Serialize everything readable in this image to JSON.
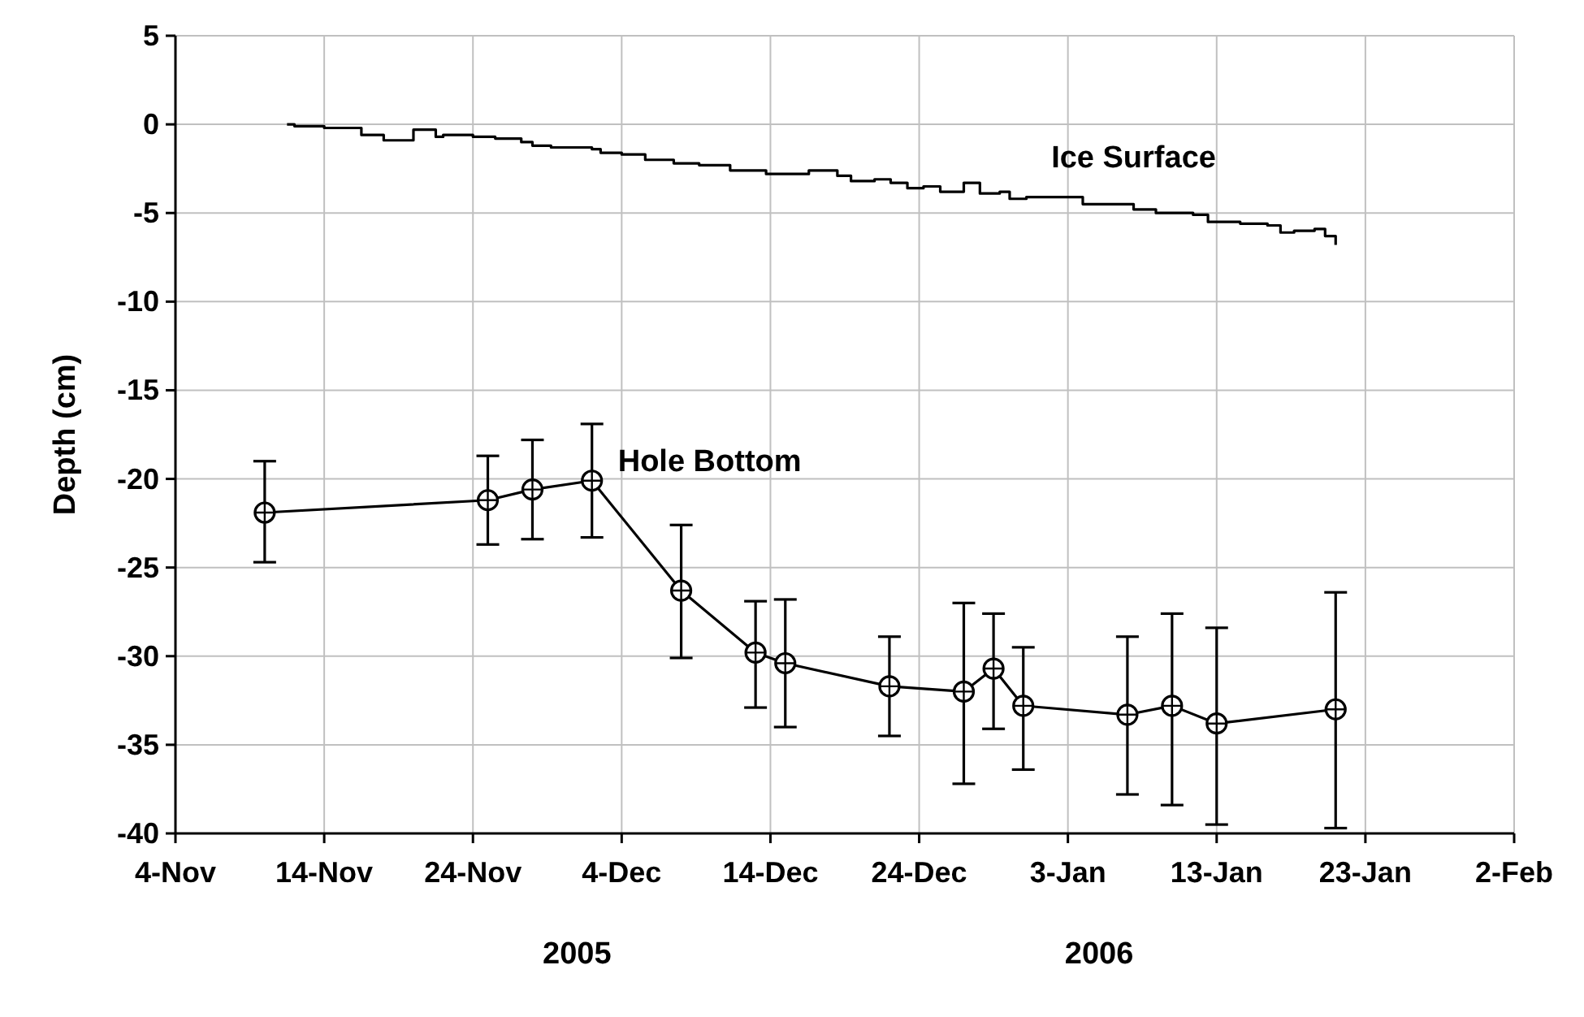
{
  "chart_data": {
    "type": "line",
    "ylabel": "Depth (cm)",
    "grid": true,
    "legend": false,
    "xlim": [
      "2005-11-04",
      "2006-02-02"
    ],
    "xticks": [
      {
        "value": "2005-11-04",
        "label": "4-Nov"
      },
      {
        "value": "2005-11-14",
        "label": "14-Nov"
      },
      {
        "value": "2005-11-24",
        "label": "24-Nov"
      },
      {
        "value": "2005-12-04",
        "label": "4-Dec"
      },
      {
        "value": "2005-12-14",
        "label": "14-Dec"
      },
      {
        "value": "2005-12-24",
        "label": "24-Dec"
      },
      {
        "value": "2006-01-03",
        "label": "3-Jan"
      },
      {
        "value": "2006-01-13",
        "label": "13-Jan"
      },
      {
        "value": "2006-01-23",
        "label": "23-Jan"
      },
      {
        "value": "2006-02-02",
        "label": "2-Feb"
      }
    ],
    "ylim": [
      -40,
      5
    ],
    "yticks": [
      -40,
      -35,
      -30,
      -25,
      -20,
      -15,
      -10,
      -5,
      0,
      5
    ],
    "annotations": [
      "2005",
      "2006"
    ],
    "series": [
      {
        "name": "Ice Surface",
        "type": "step",
        "color": "#000000",
        "marker": "none",
        "line_style": "solid",
        "x": [
          "2005-11-11T12:00",
          "2005-11-12T00:00",
          "2005-11-14T00:00",
          "2005-11-16T00:00",
          "2005-11-16T12:00",
          "2005-11-18T00:00",
          "2005-11-20T00:00",
          "2005-11-21T12:00",
          "2005-11-22T00:00",
          "2005-11-24T00:00",
          "2005-11-25T12:00",
          "2005-11-27T06:00",
          "2005-11-28T00:00",
          "2005-11-29T06:00",
          "2005-12-02T00:00",
          "2005-12-02T14:00",
          "2005-12-04T00:00",
          "2005-12-05T14:00",
          "2005-12-07T12:00",
          "2005-12-09T05:00",
          "2005-12-11T07:00",
          "2005-12-13T17:00",
          "2005-12-15T17:00",
          "2005-12-16T14:00",
          "2005-12-17T14:00",
          "2005-12-18T12:00",
          "2005-12-19T10:00",
          "2005-12-21T00:00",
          "2005-12-22T02:00",
          "2005-12-23T05:00",
          "2005-12-24T07:00",
          "2005-12-25T10:00",
          "2005-12-27T00:00",
          "2005-12-28T02:00",
          "2005-12-29T10:00",
          "2005-12-30T02:00",
          "2005-12-31T05:00",
          "2006-01-02T17:00",
          "2006-01-04T00:00",
          "2006-01-06T17:00",
          "2006-01-07T10:00",
          "2006-01-08T22:00",
          "2006-01-11T10:00",
          "2006-01-12T10:00",
          "2006-01-14T14:00",
          "2006-01-16T10:00",
          "2006-01-17T07:00",
          "2006-01-18T05:00",
          "2006-01-19T14:00",
          "2006-01-20T07:00",
          "2006-01-21T00:00"
        ],
        "values": [
          0,
          -0.1,
          -0.2,
          -0.2,
          -0.6,
          -0.9,
          -0.3,
          -0.7,
          -0.6,
          -0.7,
          -0.8,
          -1.0,
          -1.2,
          -1.3,
          -1.4,
          -1.6,
          -1.7,
          -2.0,
          -2.2,
          -2.3,
          -2.6,
          -2.8,
          -2.8,
          -2.6,
          -2.6,
          -2.9,
          -3.2,
          -3.1,
          -3.3,
          -3.6,
          -3.5,
          -3.8,
          -3.3,
          -3.9,
          -3.8,
          -4.2,
          -4.1,
          -4.1,
          -4.5,
          -4.5,
          -4.8,
          -5.0,
          -5.1,
          -5.5,
          -5.6,
          -5.7,
          -6.1,
          -6.0,
          -5.9,
          -6.3,
          -6.8
        ]
      },
      {
        "name": "Hole Bottom",
        "color": "#000000",
        "marker": "circle",
        "line_style": "solid",
        "x": [
          "2005-11-10",
          "2005-11-25",
          "2005-11-28",
          "2005-12-02",
          "2005-12-08",
          "2005-12-13",
          "2005-12-15",
          "2005-12-22",
          "2005-12-27",
          "2005-12-29",
          "2005-12-31",
          "2006-01-07",
          "2006-01-10",
          "2006-01-13",
          "2006-01-21"
        ],
        "values": [
          -21.9,
          -21.2,
          -20.6,
          -20.1,
          -26.3,
          -29.8,
          -30.4,
          -31.7,
          -32.0,
          -30.7,
          -32.8,
          -33.3,
          -32.8,
          -33.8,
          -33.0
        ],
        "errors": [
          [
            -24.7,
            -19.0
          ],
          [
            -23.7,
            -18.7
          ],
          [
            -23.4,
            -17.8
          ],
          [
            -23.3,
            -16.9
          ],
          [
            -30.1,
            -22.6
          ],
          [
            -32.9,
            -26.9
          ],
          [
            -34.0,
            -26.8
          ],
          [
            -34.5,
            -28.9
          ],
          [
            -37.2,
            -27.0
          ],
          [
            -34.1,
            -27.6
          ],
          [
            -36.4,
            -29.5
          ],
          [
            -37.8,
            -28.9
          ],
          [
            -38.4,
            -27.6
          ],
          [
            -39.5,
            -28.4
          ],
          [
            -39.7,
            -26.4
          ]
        ]
      }
    ]
  }
}
